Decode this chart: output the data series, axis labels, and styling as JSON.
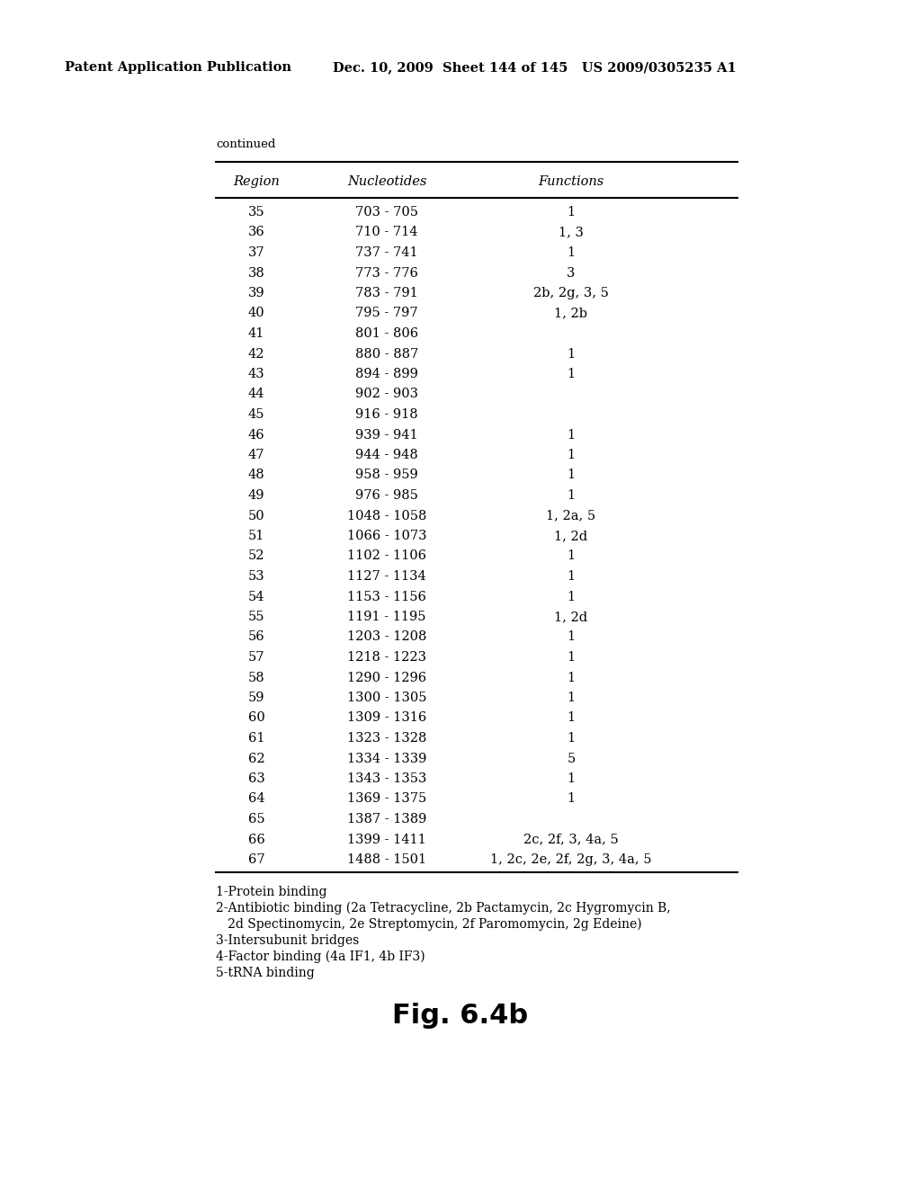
{
  "header_text_left": "Patent Application Publication",
  "header_text_right": "Dec. 10, 2009  Sheet 144 of 145   US 2009/0305235 A1",
  "continued_label": "continued",
  "col_headers": [
    "Region",
    "Nucleotides",
    "Functions"
  ],
  "table_rows": [
    [
      "35",
      "703 - 705",
      "1"
    ],
    [
      "36",
      "710 - 714",
      "1, 3"
    ],
    [
      "37",
      "737 - 741",
      "1"
    ],
    [
      "38",
      "773 - 776",
      "3"
    ],
    [
      "39",
      "783 - 791",
      "2b, 2g, 3, 5"
    ],
    [
      "40",
      "795 - 797",
      "1, 2b"
    ],
    [
      "41",
      "801 - 806",
      ""
    ],
    [
      "42",
      "880 - 887",
      "1"
    ],
    [
      "43",
      "894 - 899",
      "1"
    ],
    [
      "44",
      "902 - 903",
      ""
    ],
    [
      "45",
      "916 - 918",
      ""
    ],
    [
      "46",
      "939 - 941",
      "1"
    ],
    [
      "47",
      "944 - 948",
      "1"
    ],
    [
      "48",
      "958 - 959",
      "1"
    ],
    [
      "49",
      "976 - 985",
      "1"
    ],
    [
      "50",
      "1048 - 1058",
      "1, 2a, 5"
    ],
    [
      "51",
      "1066 - 1073",
      "1, 2d"
    ],
    [
      "52",
      "1102 - 1106",
      "1"
    ],
    [
      "53",
      "1127 - 1134",
      "1"
    ],
    [
      "54",
      "1153 - 1156",
      "1"
    ],
    [
      "55",
      "1191 - 1195",
      "1, 2d"
    ],
    [
      "56",
      "1203 - 1208",
      "1"
    ],
    [
      "57",
      "1218 - 1223",
      "1"
    ],
    [
      "58",
      "1290 - 1296",
      "1"
    ],
    [
      "59",
      "1300 - 1305",
      "1"
    ],
    [
      "60",
      "1309 - 1316",
      "1"
    ],
    [
      "61",
      "1323 - 1328",
      "1"
    ],
    [
      "62",
      "1334 - 1339",
      "5"
    ],
    [
      "63",
      "1343 - 1353",
      "1"
    ],
    [
      "64",
      "1369 - 1375",
      "1"
    ],
    [
      "65",
      "1387 - 1389",
      ""
    ],
    [
      "66",
      "1399 - 1411",
      "2c, 2f, 3, 4a, 5"
    ],
    [
      "67",
      "1488 - 1501",
      "1, 2c, 2e, 2f, 2g, 3, 4a, 5"
    ]
  ],
  "footnotes": [
    "1-Protein binding",
    "2-Antibiotic binding (2a Tetracycline, 2b Pactamycin, 2c Hygromycin B,",
    "   2d Spectinomycin, 2e Streptomycin, 2f Paromomycin, 2g Edeine)",
    "3-Intersubunit bridges",
    "4-Factor binding (4a IF1, 4b IF3)",
    "5-tRNA binding"
  ],
  "figure_label": "Fig. 6.4b",
  "bg_color": "#ffffff",
  "text_color": "#000000",
  "header_fontsize": 10.5,
  "table_fontsize": 10.5,
  "footnote_fontsize": 10,
  "figure_fontsize": 22
}
